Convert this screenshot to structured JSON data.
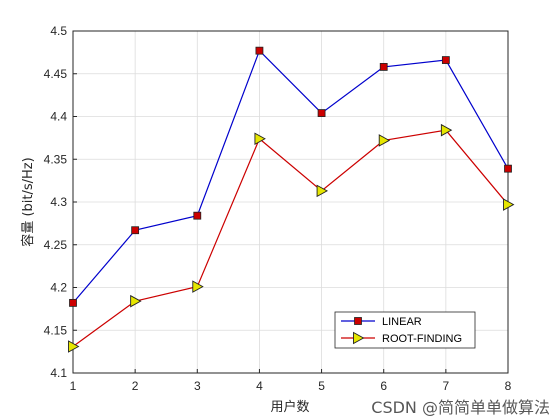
{
  "chart_data": {
    "type": "line",
    "x": [
      1,
      2,
      3,
      4,
      5,
      6,
      7,
      8
    ],
    "xlim": [
      1,
      8
    ],
    "ylim": [
      4.1,
      4.5
    ],
    "xticks": [
      "1",
      "2",
      "3",
      "4",
      "5",
      "6",
      "7",
      "8"
    ],
    "yticks": [
      "4.1",
      "4.15",
      "4.2",
      "4.25",
      "4.3",
      "4.35",
      "4.4",
      "4.45",
      "4.5"
    ],
    "xlabel": "用户数",
    "ylabel": "容量 (bit/s/Hz)",
    "grid": true,
    "legend_position": "bottom-right",
    "series": [
      {
        "name": "LINEAR",
        "color": "#0000cc",
        "marker": "square",
        "marker_color": "#cc0000",
        "values": [
          4.182,
          4.267,
          4.284,
          4.477,
          4.404,
          4.458,
          4.466,
          4.339
        ]
      },
      {
        "name": "ROOT-FINDING",
        "color": "#cc0000",
        "marker": "triangle-right",
        "marker_color": "#e6e600",
        "values": [
          4.131,
          4.184,
          4.201,
          4.374,
          4.313,
          4.372,
          4.384,
          4.297
        ]
      }
    ]
  },
  "watermark": {
    "text": "CSDN @简简单单做算法"
  }
}
